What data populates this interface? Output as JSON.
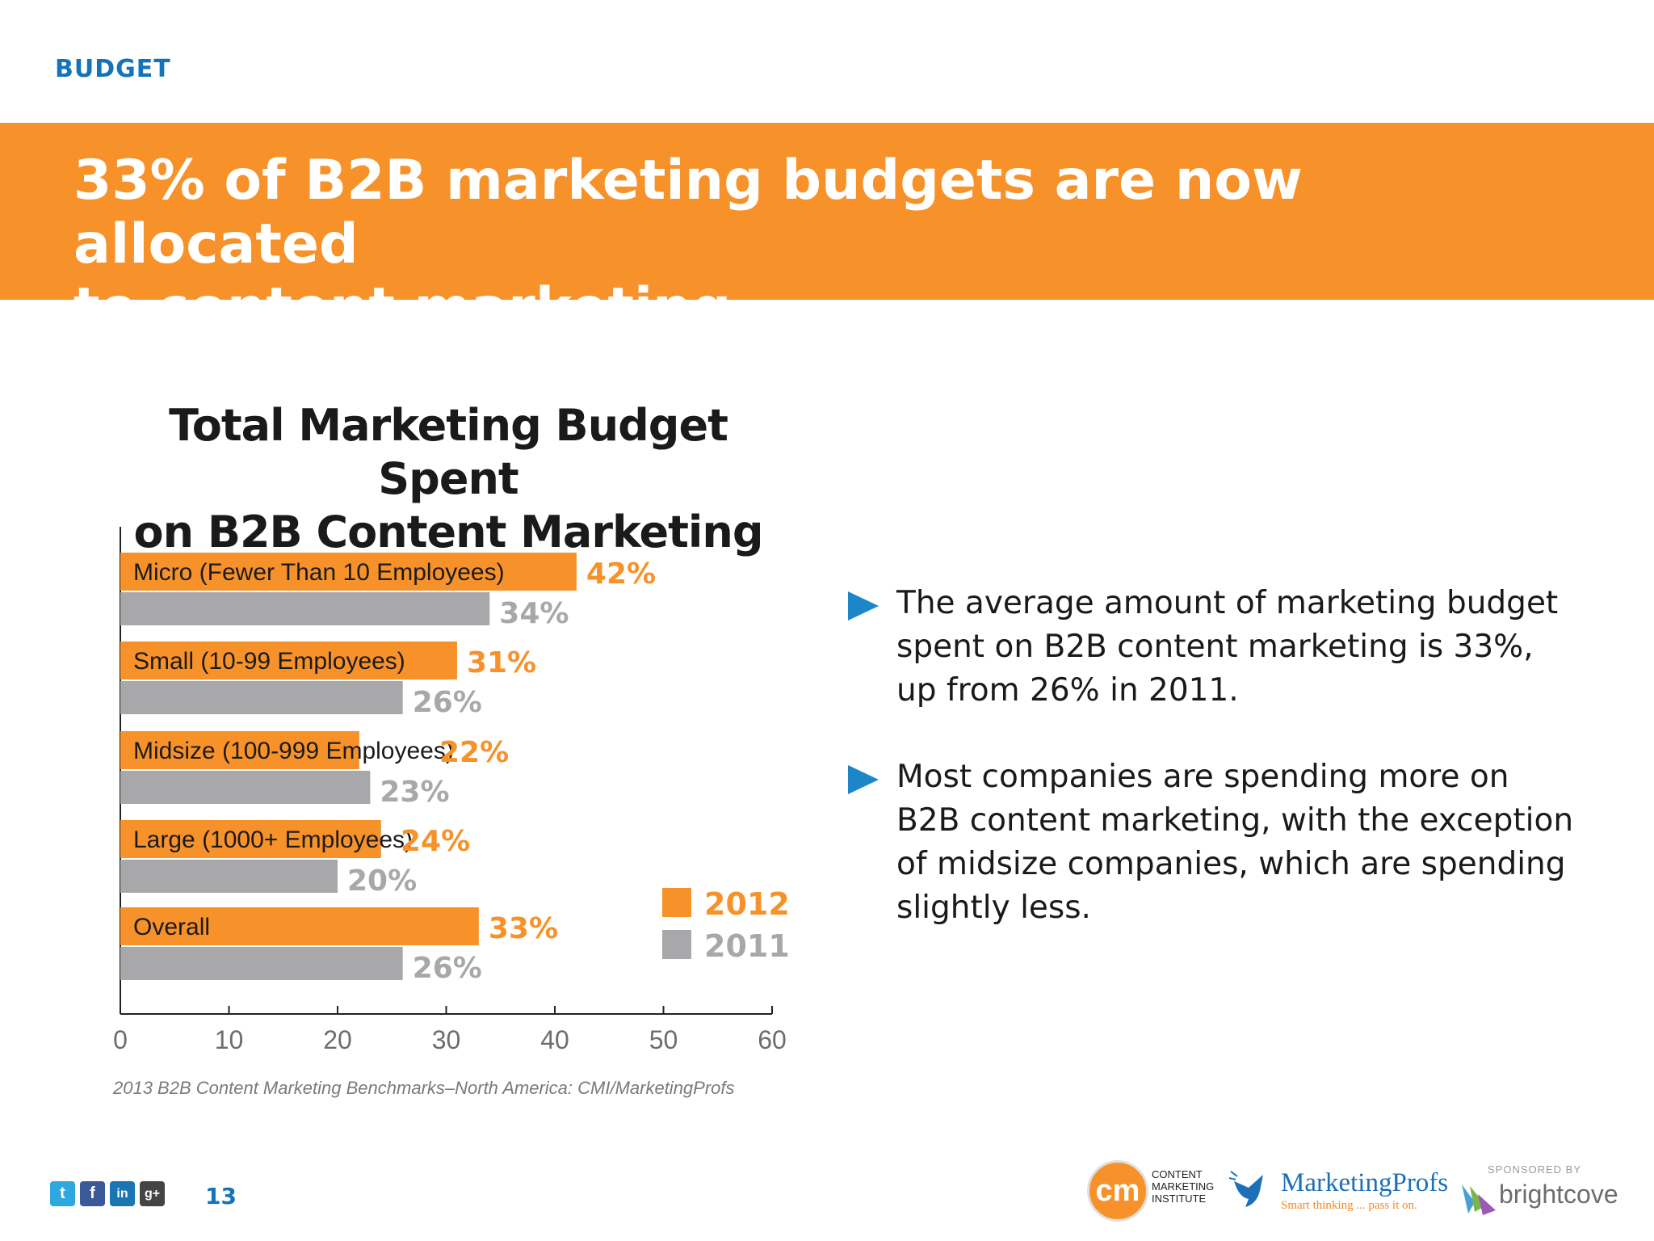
{
  "header": {
    "section_label": "BUDGET",
    "banner_line1": "33% of  B2B marketing budgets are now allocated",
    "banner_line2": "to content marketing."
  },
  "chart_data": {
    "type": "bar",
    "orientation": "horizontal",
    "title_line1": "Total Marketing Budget Spent",
    "title_line2": "on B2B Content Marketing",
    "categories": [
      "Micro (Fewer Than 10 Employees)",
      "Small (10-99 Employees)",
      "Midsize (100-999 Employees)",
      "Large (1000+ Employees)",
      "Overall"
    ],
    "series": [
      {
        "name": "2012",
        "values": [
          42,
          31,
          22,
          24,
          33
        ],
        "labels": [
          "42%",
          "31%",
          "22%",
          "24%",
          "33%"
        ],
        "color": "#f7922a"
      },
      {
        "name": "2011",
        "values": [
          34,
          26,
          23,
          20,
          26
        ],
        "labels": [
          "34%",
          "26%",
          "23%",
          "20%",
          "26%"
        ],
        "color": "#a8a8aa"
      }
    ],
    "xlim": [
      0,
      60
    ],
    "xticks": [
      "0",
      "10",
      "20",
      "30",
      "40",
      "50",
      "60"
    ],
    "grid": false,
    "legend_position": "bottom-right",
    "source": "2013 B2B Content Marketing Benchmarks–North America: CMI/MarketingProfs"
  },
  "bullets": [
    {
      "line1": "The average amount of marketing budget",
      "line2": "spent on B2B content marketing is 33%,",
      "line3": "up from 26% in 2011."
    },
    {
      "line1": "Most companies are spending more on",
      "line2": "B2B content marketing, with the exception",
      "line3": "of midsize companies, which are spending",
      "line4": "slightly less."
    }
  ],
  "footer": {
    "page_number": "13",
    "social": [
      {
        "icon": "twitter-icon",
        "glyph": "t",
        "color": "#2fa8e0"
      },
      {
        "icon": "facebook-icon",
        "glyph": "f",
        "color": "#3b5998"
      },
      {
        "icon": "linkedin-icon",
        "glyph": "in",
        "color": "#1c75b3"
      },
      {
        "icon": "google-plus-icon",
        "glyph": "g+",
        "color": "#444444"
      }
    ],
    "cmi_mark": "cm",
    "cmi_line1": "CONTENT",
    "cmi_line2": "MARKETING",
    "cmi_line3": "INSTITUTE",
    "mp_name": "MarketingProfs",
    "mp_tagline": "Smart thinking ... pass it on.",
    "bc_sponsored": "SPONSORED BY",
    "bc_name": "brightcove"
  }
}
